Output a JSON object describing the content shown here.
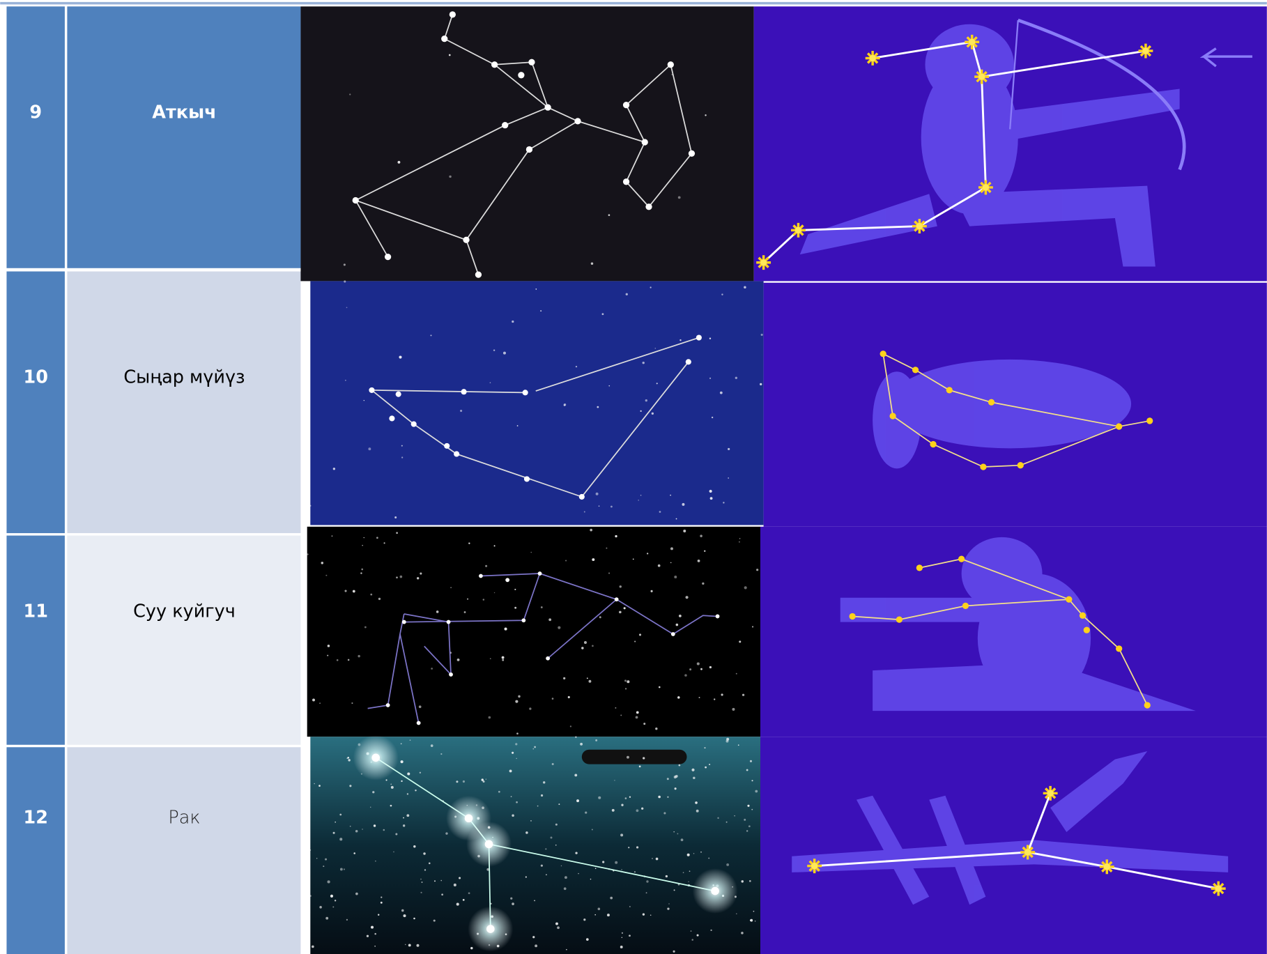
{
  "table": {
    "rows": [
      [
        "9",
        "Аткыч"
      ],
      [
        "10",
        "Сыңар мүйүз"
      ],
      [
        "11",
        "Суу куйгуч"
      ],
      [
        "12",
        "Рак"
      ]
    ]
  }
}
